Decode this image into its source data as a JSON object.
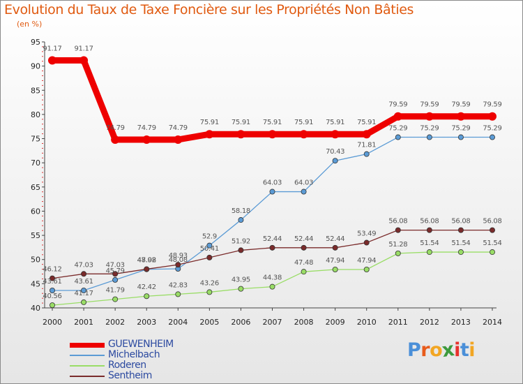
{
  "title": "Evolution du Taux de Taxe Foncière sur les Propriétés Non Bâties",
  "subtitle": "(en %)",
  "logo": {
    "text": "Proxiti",
    "letter_colors": [
      "#4a8fd8",
      "#e85c1c",
      "#f2a623",
      "#3d9a3d",
      "#e8322d",
      "#4a8fd8",
      "#f2a623"
    ]
  },
  "chart_data": {
    "type": "line",
    "title": "Evolution du Taux de Taxe Foncière sur les Propriétés Non Bâties",
    "ylabel": "(en %)",
    "x": [
      "2000",
      "2001",
      "2002",
      "2003",
      "2004",
      "2005",
      "2006",
      "2007",
      "2008",
      "2009",
      "2010",
      "2011",
      "2012",
      "2013",
      "2014"
    ],
    "ylim": [
      40,
      95
    ],
    "yticks": [
      40,
      45,
      50,
      55,
      60,
      65,
      70,
      75,
      80,
      85,
      90,
      95
    ],
    "grid": false,
    "legend_position": "bottom-left",
    "series": [
      {
        "name": "GUEWENHEIM",
        "color": "#ee0000",
        "values": [
          91.17,
          91.17,
          74.79,
          74.79,
          74.79,
          75.91,
          75.91,
          75.91,
          75.91,
          75.91,
          75.91,
          79.59,
          79.59,
          79.59,
          79.59
        ],
        "labels": [
          "91.17",
          "91.17",
          "74.79",
          "74.79",
          "74.79",
          "75.91",
          "75.91",
          "75.91",
          "75.91",
          "75.91",
          "75.91",
          "79.59",
          "79.59",
          "79.59",
          "79.59"
        ]
      },
      {
        "name": "Michelbach",
        "color": "#5b9bd5",
        "values": [
          43.61,
          43.61,
          45.79,
          47.98,
          48.08,
          52.9,
          58.18,
          64.03,
          64.03,
          70.43,
          71.81,
          75.29,
          75.29,
          75.29,
          75.29
        ],
        "labels": [
          "43.61",
          "43.61",
          "45.79",
          "47.98",
          "48.08",
          "52.9",
          "58.18",
          "64.03",
          "64.03",
          "70.43",
          "71.81",
          "75.29",
          "75.29",
          "75.29",
          "75.29"
        ]
      },
      {
        "name": "Roderen",
        "color": "#99dd66",
        "values": [
          40.56,
          41.17,
          41.79,
          42.42,
          42.83,
          43.26,
          43.95,
          44.38,
          47.48,
          47.94,
          47.94,
          51.28,
          51.54,
          51.54,
          51.54
        ],
        "labels": [
          "40.56",
          "41.17",
          "41.79",
          "42.42",
          "42.83",
          "43.26",
          "43.95",
          "44.38",
          "47.48",
          "47.94",
          "47.94",
          "51.28",
          "51.54",
          "51.54",
          "51.54"
        ]
      },
      {
        "name": "Sentheim",
        "color": "#7a2b2b",
        "values": [
          46.12,
          47.03,
          47.03,
          48.02,
          48.93,
          50.41,
          51.92,
          52.44,
          52.44,
          52.44,
          53.49,
          56.08,
          56.08,
          56.08,
          56.08
        ],
        "labels": [
          "46.12",
          "47.03",
          "47.03",
          "48.02",
          "48.93",
          "50.41",
          "51.92",
          "52.44",
          "52.44",
          "52.44",
          "53.49",
          "56.08",
          "56.08",
          "56.08",
          "56.08"
        ]
      }
    ]
  }
}
